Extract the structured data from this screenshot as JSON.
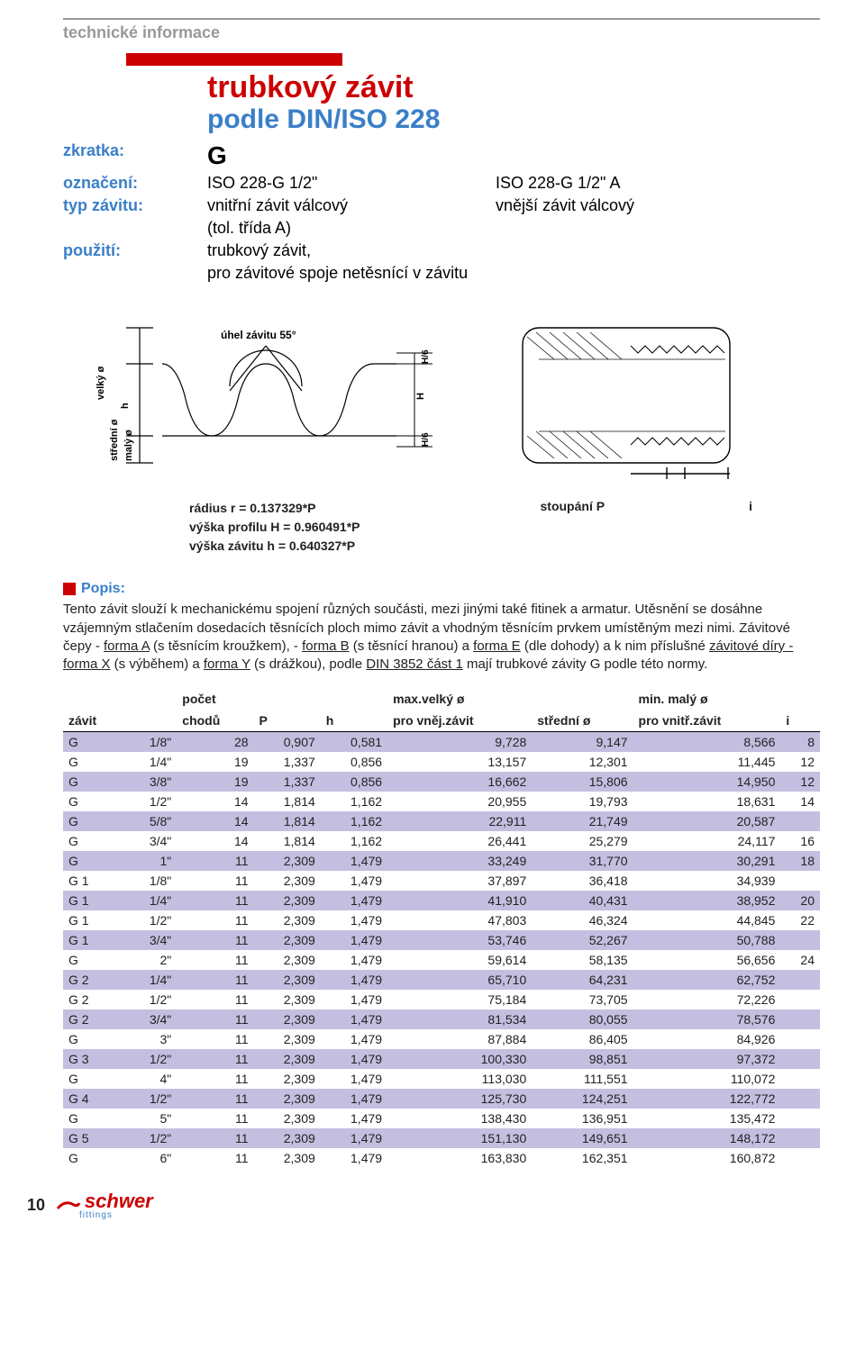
{
  "section_title": "technické informace",
  "title": {
    "main": "trubkový závit",
    "sub": "podle  DIN/ISO 228",
    "color_main": "#c00",
    "color_sub": "#3a7fc8"
  },
  "defs": {
    "zkratka_label": "zkratka:",
    "zkratka_val": "G",
    "oznaceni_label": "označení:",
    "oznaceni_v1": "ISO 228-G 1/2\"",
    "oznaceni_v2": "ISO 228-G 1/2\" A",
    "typ_label": "typ závitu:",
    "typ_v1": "vnitřní závit válcový",
    "typ_v2": "vnější závit válcový",
    "typ_note": "(tol. třída A)",
    "pouziti_label": "použití:",
    "pouziti_v1": "trubkový závit,",
    "pouziti_v2": "pro závitové spoje netěsnící v závitu"
  },
  "diagram_labels": {
    "angle": "úhel závitu  55°",
    "big_dia": "velký ø",
    "mid_dia": "střední ø",
    "small_dia": "malý ø",
    "h": "h",
    "H": "H",
    "H6a": "H/6",
    "H6b": "H/6",
    "pitch": "stoupání  P",
    "i": "i",
    "radius_line": "rádius  r =  0.137329*P",
    "profile_line": "výška profilu  H = 0.960491*P",
    "thread_line": "výška závitu  h = 0.640327*P"
  },
  "popis": {
    "heading": "Popis:",
    "text_parts": [
      "Tento závit slouží k mechanickému spojení různých součásti, mezi jinými také fitinek a armatur.",
      "Utěsnění se dosáhne vzájemným stlačením dosedacích těsnících ploch mimo závit a vhodným těsnícím prvkem umístěným mezi nimi. ",
      "Závitové čepy - ",
      {
        "u": "forma A"
      },
      " (s těsnícím kroužkem), - ",
      {
        "u": "forma B"
      },
      " (s těsnící hranou) a ",
      {
        "u": "forma E"
      },
      " (dle dohody) a k nim příslušné  ",
      {
        "u": "závitové díry - forma X"
      },
      " (s výběhem) a ",
      {
        "u": "forma Y"
      },
      " (s drážkou), podle ",
      {
        "u": "DIN 3852 část 1"
      },
      " mají trubkové závity G podle této normy."
    ]
  },
  "table": {
    "header_upper": [
      "",
      "počet",
      "",
      "",
      "max.velký ø",
      "",
      "min. malý ø",
      ""
    ],
    "header_lower": [
      "závit",
      "chodů",
      "P",
      "h",
      "pro vněj.závit",
      "střední ø",
      "pro vnitř.závit",
      "i"
    ],
    "shade_color": "#c4bfe0",
    "rows": [
      {
        "z": "G",
        "f": "1/8\"",
        "c": "28",
        "p": "0,907",
        "h": "0,581",
        "m": "9,728",
        "s": "9,147",
        "n": "8,566",
        "i": "8",
        "shade": true
      },
      {
        "z": "G",
        "f": "1/4\"",
        "c": "19",
        "p": "1,337",
        "h": "0,856",
        "m": "13,157",
        "s": "12,301",
        "n": "11,445",
        "i": "12",
        "shade": false
      },
      {
        "z": "G",
        "f": "3/8\"",
        "c": "19",
        "p": "1,337",
        "h": "0,856",
        "m": "16,662",
        "s": "15,806",
        "n": "14,950",
        "i": "12",
        "shade": true
      },
      {
        "z": "G",
        "f": "1/2\"",
        "c": "14",
        "p": "1,814",
        "h": "1,162",
        "m": "20,955",
        "s": "19,793",
        "n": "18,631",
        "i": "14",
        "shade": false
      },
      {
        "z": "G",
        "f": "5/8\"",
        "c": "14",
        "p": "1,814",
        "h": "1,162",
        "m": "22,911",
        "s": "21,749",
        "n": "20,587",
        "i": "",
        "shade": true
      },
      {
        "z": "G",
        "f": "3/4\"",
        "c": "14",
        "p": "1,814",
        "h": "1,162",
        "m": "26,441",
        "s": "25,279",
        "n": "24,117",
        "i": "16",
        "shade": false
      },
      {
        "z": "G",
        "f": "1\"",
        "c": "11",
        "p": "2,309",
        "h": "1,479",
        "m": "33,249",
        "s": "31,770",
        "n": "30,291",
        "i": "18",
        "shade": true
      },
      {
        "z": "G 1",
        "f": "1/8\"",
        "c": "11",
        "p": "2,309",
        "h": "1,479",
        "m": "37,897",
        "s": "36,418",
        "n": "34,939",
        "i": "",
        "shade": false
      },
      {
        "z": "G 1",
        "f": "1/4\"",
        "c": "11",
        "p": "2,309",
        "h": "1,479",
        "m": "41,910",
        "s": "40,431",
        "n": "38,952",
        "i": "20",
        "shade": true
      },
      {
        "z": "G 1",
        "f": "1/2\"",
        "c": "11",
        "p": "2,309",
        "h": "1,479",
        "m": "47,803",
        "s": "46,324",
        "n": "44,845",
        "i": "22",
        "shade": false
      },
      {
        "z": "G 1",
        "f": "3/4\"",
        "c": "11",
        "p": "2,309",
        "h": "1,479",
        "m": "53,746",
        "s": "52,267",
        "n": "50,788",
        "i": "",
        "shade": true
      },
      {
        "z": "G",
        "f": "2\"",
        "c": "11",
        "p": "2,309",
        "h": "1,479",
        "m": "59,614",
        "s": "58,135",
        "n": "56,656",
        "i": "24",
        "shade": false
      },
      {
        "z": "G 2",
        "f": "1/4\"",
        "c": "11",
        "p": "2,309",
        "h": "1,479",
        "m": "65,710",
        "s": "64,231",
        "n": "62,752",
        "i": "",
        "shade": true
      },
      {
        "z": "G 2",
        "f": "1/2\"",
        "c": "11",
        "p": "2,309",
        "h": "1,479",
        "m": "75,184",
        "s": "73,705",
        "n": "72,226",
        "i": "",
        "shade": false
      },
      {
        "z": "G 2",
        "f": "3/4\"",
        "c": "11",
        "p": "2,309",
        "h": "1,479",
        "m": "81,534",
        "s": "80,055",
        "n": "78,576",
        "i": "",
        "shade": true
      },
      {
        "z": "G",
        "f": "3\"",
        "c": "11",
        "p": "2,309",
        "h": "1,479",
        "m": "87,884",
        "s": "86,405",
        "n": "84,926",
        "i": "",
        "shade": false
      },
      {
        "z": "G 3",
        "f": "1/2\"",
        "c": "11",
        "p": "2,309",
        "h": "1,479",
        "m": "100,330",
        "s": "98,851",
        "n": "97,372",
        "i": "",
        "shade": true
      },
      {
        "z": "G",
        "f": "4\"",
        "c": "11",
        "p": "2,309",
        "h": "1,479",
        "m": "113,030",
        "s": "111,551",
        "n": "110,072",
        "i": "",
        "shade": false
      },
      {
        "z": "G 4",
        "f": "1/2\"",
        "c": "11",
        "p": "2,309",
        "h": "1,479",
        "m": "125,730",
        "s": "124,251",
        "n": "122,772",
        "i": "",
        "shade": true
      },
      {
        "z": "G",
        "f": "5\"",
        "c": "11",
        "p": "2,309",
        "h": "1,479",
        "m": "138,430",
        "s": "136,951",
        "n": "135,472",
        "i": "",
        "shade": false
      },
      {
        "z": "G 5",
        "f": "1/2\"",
        "c": "11",
        "p": "2,309",
        "h": "1,479",
        "m": "151,130",
        "s": "149,651",
        "n": "148,172",
        "i": "",
        "shade": true
      },
      {
        "z": "G",
        "f": "6\"",
        "c": "11",
        "p": "2,309",
        "h": "1,479",
        "m": "163,830",
        "s": "162,351",
        "n": "160,872",
        "i": "",
        "shade": false
      }
    ]
  },
  "footer": {
    "page": "10",
    "logo_name": "schwer",
    "logo_sub": "fittings"
  }
}
